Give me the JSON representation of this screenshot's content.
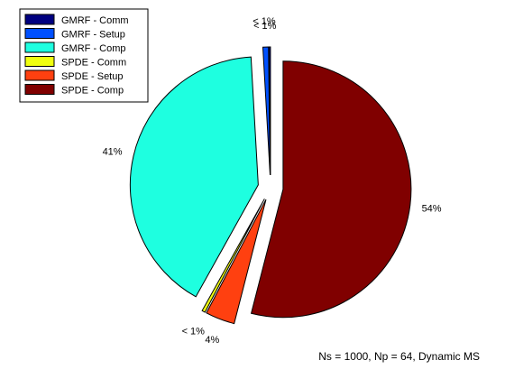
{
  "chart_data": {
    "type": "pie",
    "exploded": true,
    "legend_position": "top-left",
    "slices": [
      {
        "label": "GMRF - Comm",
        "value": 0.2,
        "display": "",
        "color": "#000080"
      },
      {
        "label": "GMRF - Setup",
        "value": 0.7,
        "display": "< 1%",
        "color": "#0050ff"
      },
      {
        "label": "GMRF - Comp",
        "value": 41,
        "display": "41%",
        "color": "#1effe0"
      },
      {
        "label": "SPDE - Comm",
        "value": 0.4,
        "display": "< 1%",
        "color": "#f0ff10"
      },
      {
        "label": "SPDE - Setup",
        "value": 3.7,
        "display": "4%",
        "color": "#ff4010"
      },
      {
        "label": "SPDE - Comp",
        "value": 54,
        "display": "54%",
        "color": "#800000"
      }
    ],
    "extra_labels": [
      "< 1%"
    ],
    "caption": "Ns = 1000, Np = 64, Dynamic MS"
  }
}
